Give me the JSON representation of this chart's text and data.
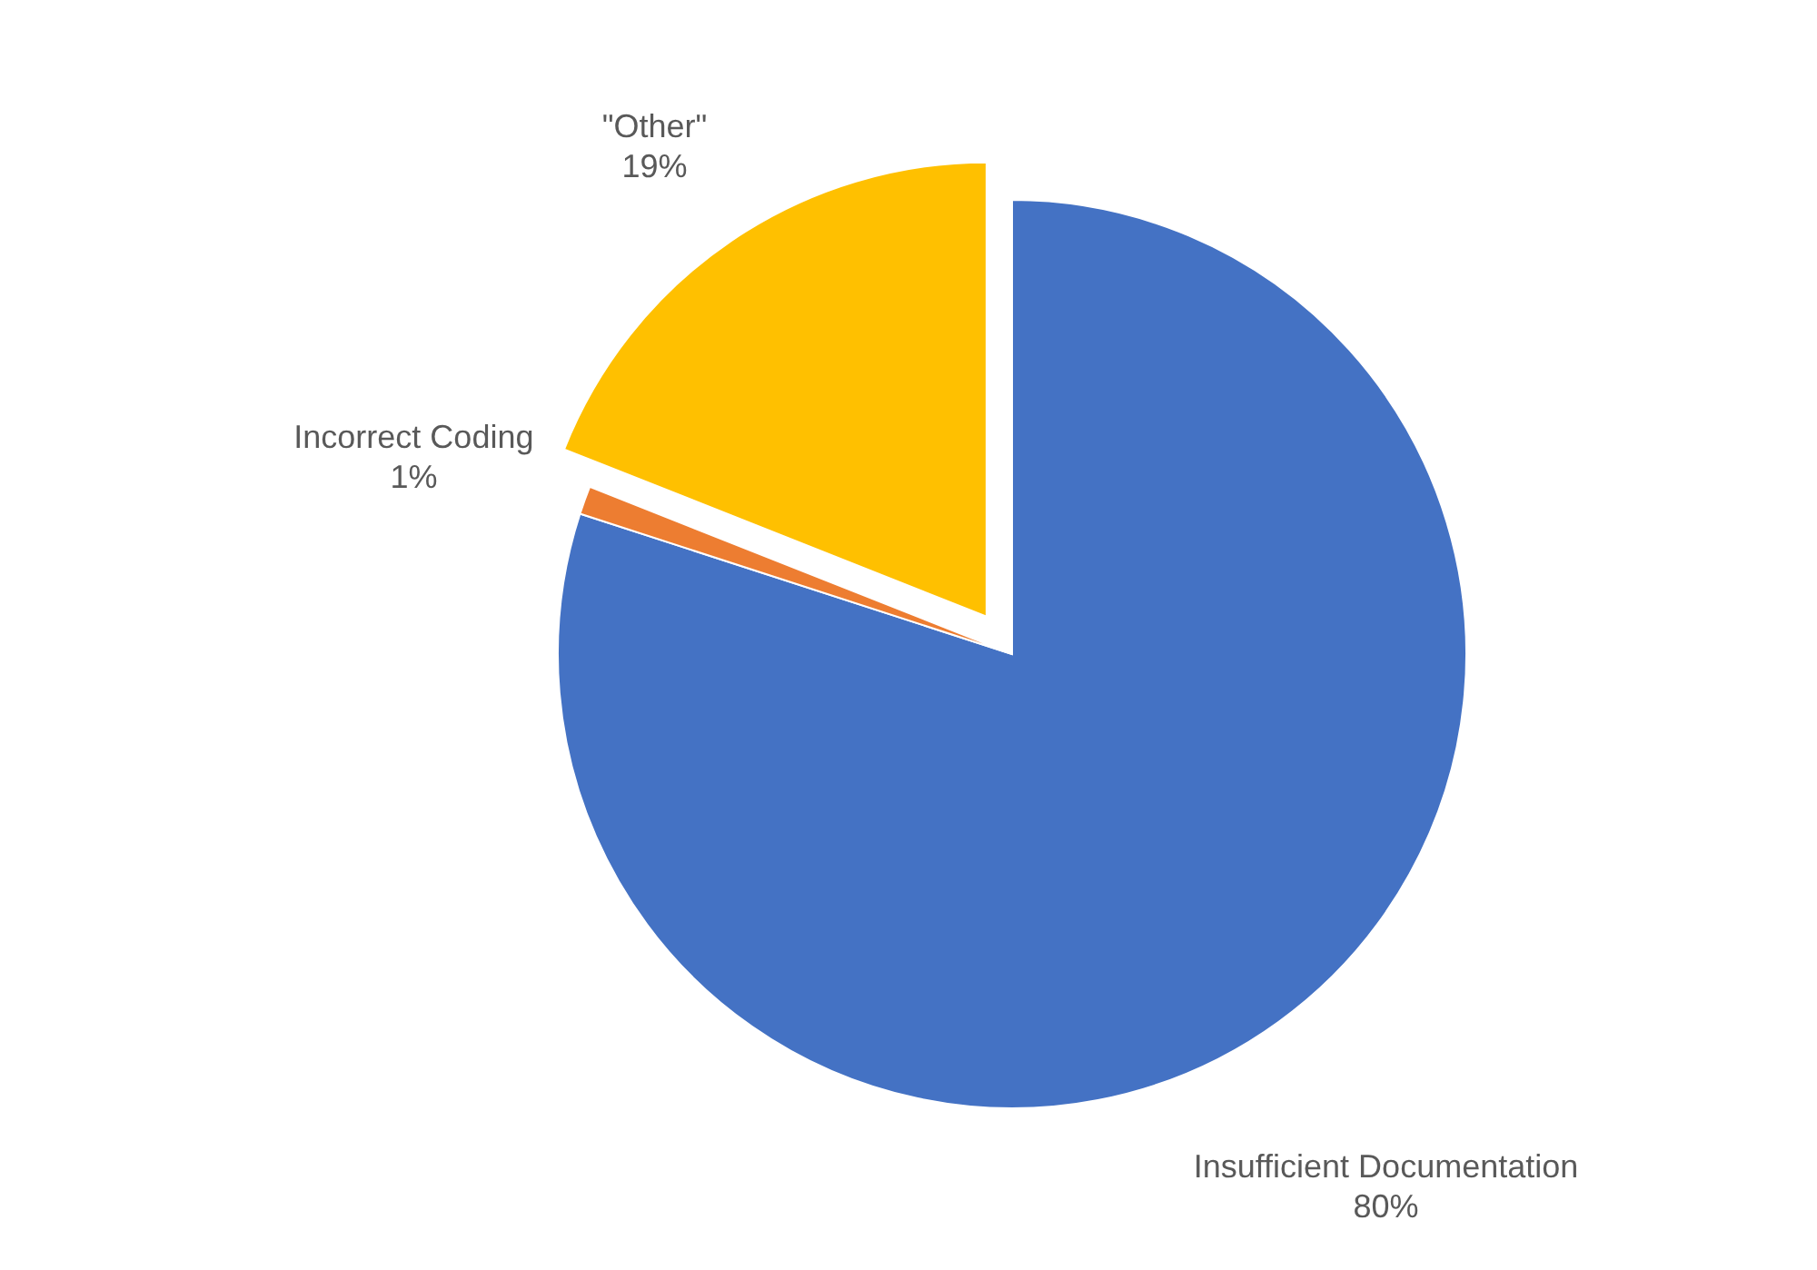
{
  "chart_data": {
    "type": "pie",
    "categories": [
      "Insufficient Documentation",
      "Incorrect Coding",
      "\"Other\""
    ],
    "values": [
      80,
      1,
      19
    ],
    "colors": [
      "#4472c4",
      "#ed7d31",
      "#ffc000"
    ],
    "value_labels": [
      "80%",
      "1%",
      "19%"
    ]
  }
}
